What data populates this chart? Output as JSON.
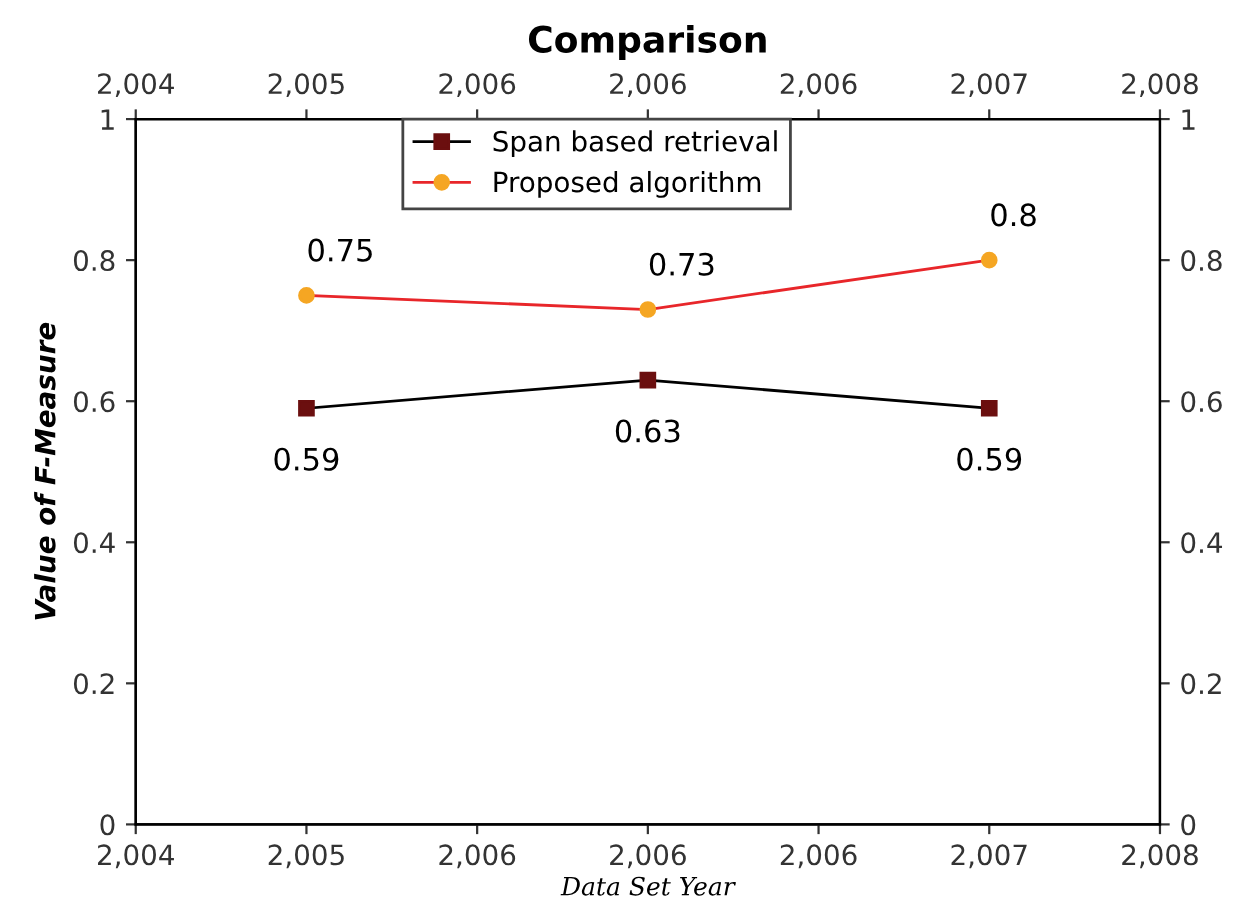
{
  "chart_data": {
    "type": "line",
    "title": "Comparison",
    "xlabel": "Data Set Year",
    "ylabel": "Value of F-Measure",
    "x": [
      2005,
      2006,
      2007
    ],
    "series": [
      {
        "name": "Span based retrieval",
        "color": "#000000",
        "colors": [
          "#6b0f0f",
          "#6b0f0f",
          "#6b0f0f"
        ],
        "marker": "square",
        "values": [
          0.59,
          0.63,
          0.59
        ]
      },
      {
        "name": "Proposed algorithm",
        "color": "#e8262a",
        "colors": [
          "#f5a623",
          "#f5a623",
          "#f5a623"
        ],
        "marker": "circle",
        "values": [
          0.75,
          0.73,
          0.8
        ]
      }
    ],
    "xlim": [
      2004.5,
      2007.5
    ],
    "xticks": [
      {
        "value": 2004.5,
        "label": "2,004"
      },
      {
        "value": 2005,
        "label": "2,005"
      },
      {
        "value": 2005.5,
        "label": "2,006"
      },
      {
        "value": 2006,
        "label": "2,006"
      },
      {
        "value": 2006.5,
        "label": "2,006"
      },
      {
        "value": 2007,
        "label": "2,007"
      },
      {
        "value": 2007.5,
        "label": "2,008"
      }
    ],
    "x2lim": [
      2004.5,
      2007.5
    ],
    "x2ticks": [
      {
        "value": 2004.5,
        "label": "2,004"
      },
      {
        "value": 2005,
        "label": "2,005"
      },
      {
        "value": 2005.5,
        "label": "2,006"
      },
      {
        "value": 2006,
        "label": "2,006"
      },
      {
        "value": 2006.5,
        "label": "2,006"
      },
      {
        "value": 2007,
        "label": "2,007"
      },
      {
        "value": 2007.5,
        "label": "2,008"
      }
    ],
    "ylim": [
      0,
      1
    ],
    "yticks": [
      0,
      0.2,
      0.4,
      0.6,
      0.8,
      1
    ],
    "y2lim": [
      0,
      1
    ],
    "y2ticks": [
      0,
      0.2,
      0.4,
      0.6,
      0.8,
      1
    ],
    "data_labels": true,
    "legend": "top",
    "grid": false
  }
}
